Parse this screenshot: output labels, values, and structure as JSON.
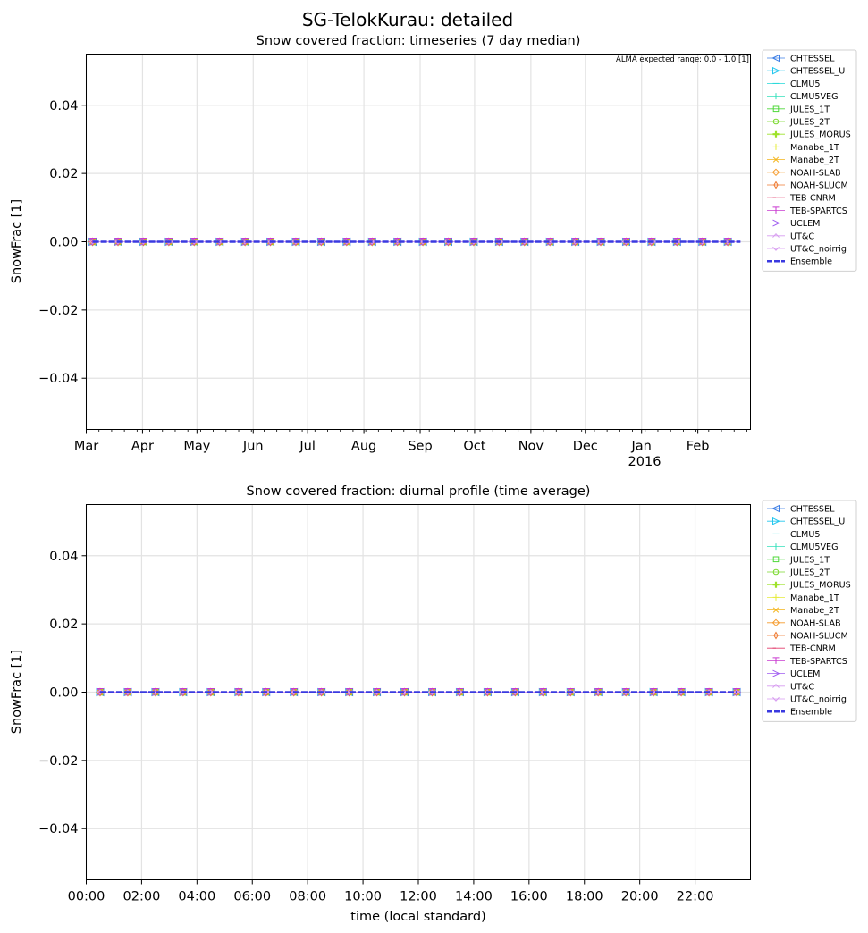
{
  "figure": {
    "title": "SG-TelokKurau: detailed"
  },
  "legend_entries": [
    {
      "name": "CHTESSEL",
      "color": "#3d7fe6",
      "marker": "tri-left"
    },
    {
      "name": "CHTESSEL_U",
      "color": "#22c6ee",
      "marker": "tri-right"
    },
    {
      "name": "CLMU5",
      "color": "#22d9d9",
      "marker": "hline"
    },
    {
      "name": "CLMU5VEG",
      "color": "#33e0bb",
      "marker": "vline"
    },
    {
      "name": "JULES_1T",
      "color": "#4fd83a",
      "marker": "square"
    },
    {
      "name": "JULES_2T",
      "color": "#7ad92e",
      "marker": "circle"
    },
    {
      "name": "JULES_MORUS",
      "color": "#9ee22a",
      "marker": "plus-filled"
    },
    {
      "name": "Manabe_1T",
      "color": "#e6ec3a",
      "marker": "plus"
    },
    {
      "name": "Manabe_2T",
      "color": "#f4b41a",
      "marker": "x"
    },
    {
      "name": "NOAH-SLAB",
      "color": "#f59a2a",
      "marker": "diamond"
    },
    {
      "name": "NOAH-SLUCM",
      "color": "#ef7a30",
      "marker": "thin-diamond"
    },
    {
      "name": "TEB-CNRM",
      "color": "#e23a6a",
      "marker": "tick-left"
    },
    {
      "name": "TEB-SPARTCS",
      "color": "#c93ad0",
      "marker": "tick-down"
    },
    {
      "name": "UCLEM",
      "color": "#9f5cf0",
      "marker": "caret-right"
    },
    {
      "name": "UT&C",
      "color": "#d69af0",
      "marker": "caret-up"
    },
    {
      "name": "UT&C_noirrig",
      "color": "#d69af0",
      "marker": "caret-down"
    },
    {
      "name": "Ensemble",
      "color": "#3a3ae0",
      "marker": "dash"
    }
  ],
  "chart_data": [
    {
      "type": "line",
      "title": "Snow covered fraction: timeseries (7 day median)",
      "xlabel": "",
      "ylabel": "SnowFrac [1]",
      "annotation": "ALMA expected range: 0.0 - 1.0 [1]",
      "ylim": [
        -0.055,
        0.055
      ],
      "yticks": [
        -0.04,
        -0.02,
        0.0,
        0.02,
        0.04
      ],
      "ytick_labels": [
        "−0.04",
        "−0.02",
        "0.00",
        "0.02",
        "0.04"
      ],
      "xlim": [
        "2015-03-01",
        "2016-03-01"
      ],
      "xticks": [
        "2015-03-01",
        "2015-04-01",
        "2015-05-01",
        "2015-06-01",
        "2015-07-01",
        "2015-08-01",
        "2015-09-01",
        "2015-10-01",
        "2015-11-01",
        "2015-12-01",
        "2016-01-01",
        "2016-02-01"
      ],
      "xtick_labels": [
        "Mar",
        "Apr",
        "May",
        "Jun",
        "Jul",
        "Aug",
        "Sep",
        "Oct",
        "Nov",
        "Dec",
        "Jan",
        "Feb"
      ],
      "xtick_year_label": "2016",
      "grid": true,
      "legend_position": "outside right",
      "series_note": "all 17 series constant at 0.0 across the year",
      "value": 0.0
    },
    {
      "type": "line",
      "title": "Snow covered fraction: diurnal profile (time average)",
      "xlabel": "time (local standard)",
      "ylabel": "SnowFrac [1]",
      "ylim": [
        -0.055,
        0.055
      ],
      "yticks": [
        -0.04,
        -0.02,
        0.0,
        0.02,
        0.04
      ],
      "ytick_labels": [
        "−0.04",
        "−0.02",
        "0.00",
        "0.02",
        "0.04"
      ],
      "xlim": [
        "00:00",
        "24:00"
      ],
      "xtick_labels": [
        "00:00",
        "02:00",
        "04:00",
        "06:00",
        "08:00",
        "10:00",
        "12:00",
        "14:00",
        "16:00",
        "18:00",
        "20:00",
        "22:00"
      ],
      "grid": true,
      "legend_position": "outside right",
      "series_note": "all 17 series constant at 0.0 over the day (half-hourly)",
      "value": 0.0
    }
  ]
}
